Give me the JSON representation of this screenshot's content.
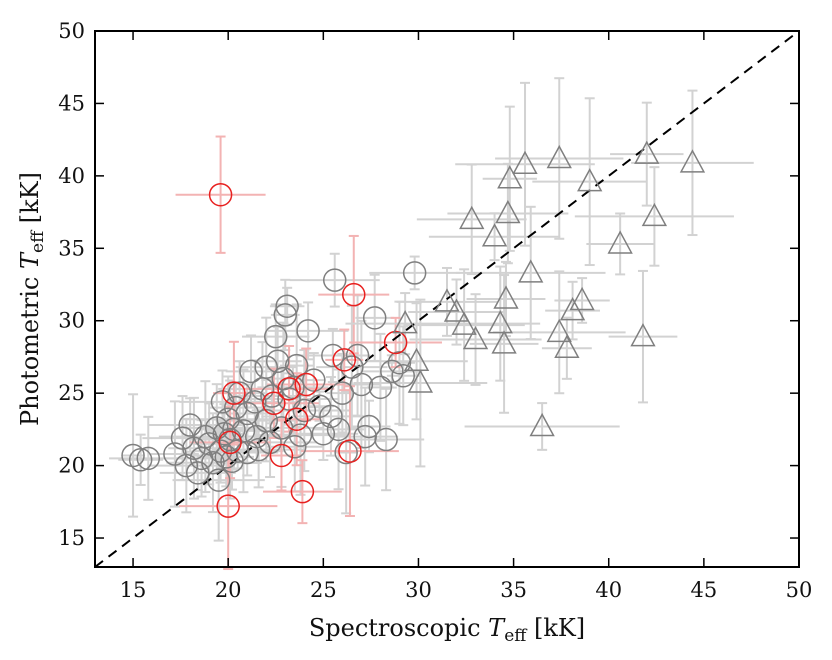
{
  "chart_data": {
    "type": "scatter",
    "title": "",
    "xlabel": {
      "main": "Spectroscopic ",
      "var": "T",
      "sub": "eff",
      "unit": " [kK]"
    },
    "ylabel": {
      "main": "Photometric ",
      "var": "T",
      "sub": "eff",
      "unit": " [kK]"
    },
    "xlim": [
      13,
      50
    ],
    "ylim": [
      13,
      50
    ],
    "xticks": [
      15,
      20,
      25,
      30,
      35,
      40,
      45,
      50
    ],
    "yticks": [
      15,
      20,
      25,
      30,
      35,
      40,
      45,
      50
    ],
    "grid": false,
    "legend": "none",
    "reference_line": {
      "style": "dashed",
      "slope": 1,
      "intercept": 0,
      "color": "#000000"
    },
    "colors": {
      "gray_marker": "#7f7f7f",
      "red_marker": "#e8201f",
      "gray_error": "#d2d2d2",
      "red_error": "#f3b3b3"
    },
    "series": [
      {
        "marker": "circle",
        "color": "gray",
        "points": [
          [
            15.0,
            20.7
          ],
          [
            15.4,
            20.4
          ],
          [
            15.8,
            20.5
          ],
          [
            17.2,
            20.8
          ],
          [
            17.6,
            21.9
          ],
          [
            17.8,
            20.0
          ],
          [
            18.0,
            22.8
          ],
          [
            18.2,
            21.2
          ],
          [
            18.4,
            19.5
          ],
          [
            18.6,
            20.5
          ],
          [
            18.8,
            22.0
          ],
          [
            19.0,
            21.5
          ],
          [
            19.2,
            20.2
          ],
          [
            19.4,
            22.6
          ],
          [
            19.5,
            19.0
          ],
          [
            19.6,
            21.0
          ],
          [
            19.7,
            24.4
          ],
          [
            19.8,
            22.2
          ],
          [
            19.9,
            20.6
          ],
          [
            20.0,
            23.2
          ],
          [
            20.1,
            21.8
          ],
          [
            20.2,
            20.3
          ],
          [
            20.3,
            22.5
          ],
          [
            20.4,
            24.0
          ],
          [
            20.5,
            21.0
          ],
          [
            20.6,
            25.0
          ],
          [
            20.8,
            22.4
          ],
          [
            21.0,
            20.9
          ],
          [
            21.0,
            23.6
          ],
          [
            21.2,
            26.5
          ],
          [
            21.4,
            24.4
          ],
          [
            21.5,
            22.0
          ],
          [
            21.6,
            21.1
          ],
          [
            21.8,
            25.3
          ],
          [
            22.0,
            23.1
          ],
          [
            22.0,
            26.8
          ],
          [
            22.2,
            21.6
          ],
          [
            22.3,
            24.8
          ],
          [
            22.5,
            28.9
          ],
          [
            22.6,
            27.2
          ],
          [
            22.8,
            22.6
          ],
          [
            22.9,
            26.0
          ],
          [
            23.0,
            30.4
          ],
          [
            23.1,
            31.0
          ],
          [
            23.2,
            24.6
          ],
          [
            23.4,
            25.4
          ],
          [
            23.5,
            21.3
          ],
          [
            23.6,
            26.9
          ],
          [
            23.8,
            22.1
          ],
          [
            24.0,
            23.8
          ],
          [
            24.2,
            29.3
          ],
          [
            24.5,
            25.9
          ],
          [
            24.8,
            24.1
          ],
          [
            25.0,
            22.2
          ],
          [
            25.4,
            23.4
          ],
          [
            25.5,
            27.6
          ],
          [
            25.6,
            32.8
          ],
          [
            25.8,
            22.5
          ],
          [
            26.0,
            25.0
          ],
          [
            26.2,
            20.9
          ],
          [
            26.5,
            26.8
          ],
          [
            26.8,
            27.6
          ],
          [
            27.0,
            25.6
          ],
          [
            27.2,
            22.0
          ],
          [
            27.4,
            22.7
          ],
          [
            27.7,
            30.2
          ],
          [
            28.0,
            25.4
          ],
          [
            28.3,
            21.8
          ],
          [
            28.6,
            26.5
          ],
          [
            29.0,
            27.1
          ],
          [
            29.2,
            26.2
          ],
          [
            29.8,
            33.3
          ]
        ]
      },
      {
        "marker": "circle",
        "color": "red",
        "points": [
          [
            19.6,
            38.7
          ],
          [
            20.0,
            17.2
          ],
          [
            20.1,
            21.6
          ],
          [
            20.3,
            25.0
          ],
          [
            22.4,
            24.3
          ],
          [
            22.8,
            20.7
          ],
          [
            23.2,
            25.3
          ],
          [
            23.6,
            23.2
          ],
          [
            23.9,
            18.2
          ],
          [
            24.1,
            25.6
          ],
          [
            26.1,
            27.3
          ],
          [
            26.4,
            21.0
          ],
          [
            26.6,
            31.8
          ],
          [
            28.8,
            28.5
          ]
        ]
      },
      {
        "marker": "triangle",
        "color": "gray",
        "points": [
          [
            29.3,
            29.8
          ],
          [
            29.9,
            27.2
          ],
          [
            30.1,
            25.7
          ],
          [
            31.5,
            31.3
          ],
          [
            32.0,
            30.6
          ],
          [
            32.4,
            29.7
          ],
          [
            32.8,
            37.0
          ],
          [
            33.0,
            28.7
          ],
          [
            34.0,
            35.8
          ],
          [
            34.3,
            29.8
          ],
          [
            34.5,
            28.4
          ],
          [
            34.6,
            31.5
          ],
          [
            34.7,
            37.4
          ],
          [
            34.8,
            39.8
          ],
          [
            35.6,
            40.8
          ],
          [
            35.9,
            33.3
          ],
          [
            36.5,
            22.7
          ],
          [
            37.4,
            29.2
          ],
          [
            37.4,
            41.2
          ],
          [
            37.8,
            28.1
          ],
          [
            38.1,
            30.7
          ],
          [
            38.6,
            31.4
          ],
          [
            39.0,
            39.6
          ],
          [
            40.6,
            35.3
          ],
          [
            41.8,
            28.9
          ],
          [
            42.0,
            41.5
          ],
          [
            42.4,
            37.2
          ],
          [
            44.4,
            40.9
          ]
        ]
      }
    ]
  }
}
